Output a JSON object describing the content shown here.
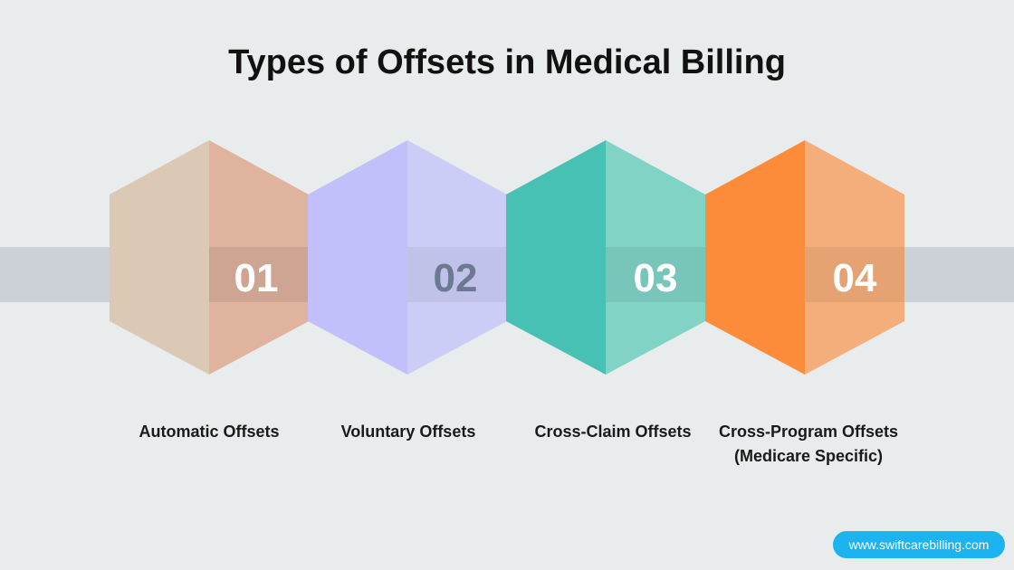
{
  "title": "Types of Offsets in Medical Billing",
  "steps": [
    {
      "number": "01",
      "label": "Automatic Offsets",
      "left_color": "#dcc9b5",
      "right_color": "#e0b39f",
      "number_color": "#ffffff"
    },
    {
      "number": "02",
      "label": "Voluntary Offsets",
      "left_color": "#c1c0fa",
      "right_color": "#cccdf7",
      "number_color": "#6b7a92"
    },
    {
      "number": "03",
      "label": "Cross-Claim Offsets",
      "left_color": "#47c1b4",
      "right_color": "#80d3c5",
      "number_color": "#ffffff"
    },
    {
      "number": "04",
      "label": "Cross-Program Offsets (Medicare Specific)",
      "left_color": "#fd8c3a",
      "right_color": "#f4ae7c",
      "number_color": "#ffffff"
    }
  ],
  "footer": {
    "website": "www.swiftcarebilling.com"
  }
}
